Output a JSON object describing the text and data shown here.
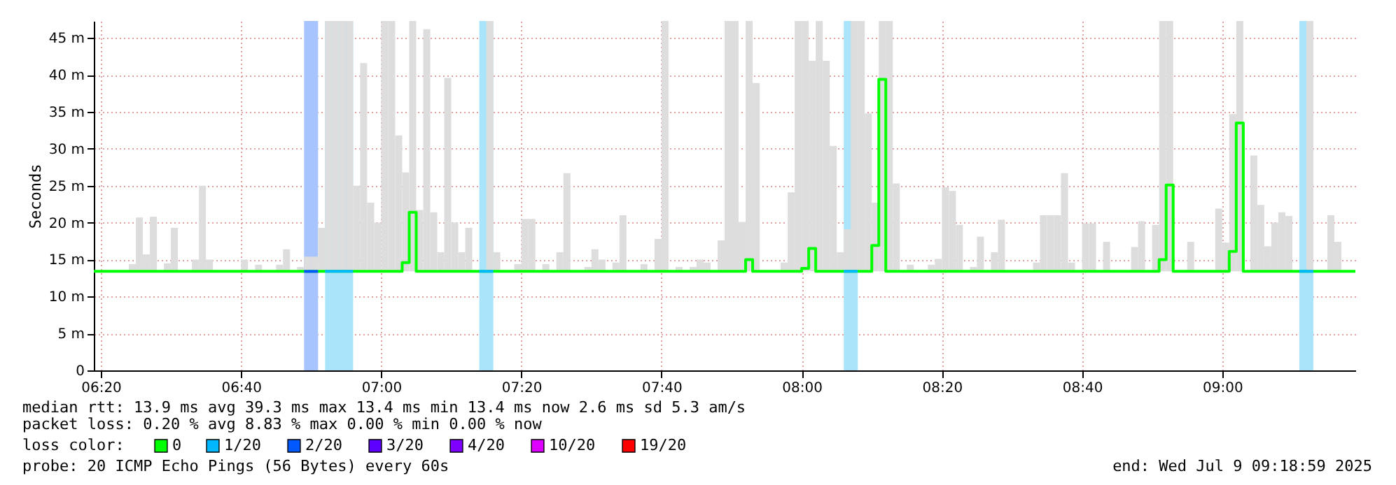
{
  "chart_data": {
    "type": "step",
    "ylabel": "Seconds",
    "xlim": [
      "2025-07-09T06:19",
      "2025-07-09T09:19"
    ],
    "ylim": [
      0,
      47.3
    ],
    "xticks": [
      {
        "value": "2025-07-09T06:20",
        "label": "06:20"
      },
      {
        "value": "2025-07-09T06:40",
        "label": "06:40"
      },
      {
        "value": "2025-07-09T07:00",
        "label": "07:00"
      },
      {
        "value": "2025-07-09T07:20",
        "label": "07:20"
      },
      {
        "value": "2025-07-09T07:40",
        "label": "07:40"
      },
      {
        "value": "2025-07-09T08:00",
        "label": "08:00"
      },
      {
        "value": "2025-07-09T08:20",
        "label": "08:20"
      },
      {
        "value": "2025-07-09T08:40",
        "label": "08:40"
      },
      {
        "value": "2025-07-09T09:00",
        "label": "09:00"
      }
    ],
    "yticks": [
      0,
      {
        "value": 5,
        "label": "5 m"
      },
      {
        "value": 10,
        "label": "10 m"
      },
      {
        "value": 15,
        "label": "15 m"
      },
      {
        "value": 20,
        "label": "20 m"
      },
      {
        "value": 25,
        "label": "25 m"
      },
      {
        "value": 30,
        "label": "30 m"
      },
      {
        "value": 35,
        "label": "35 m"
      },
      {
        "value": 40,
        "label": "40 m"
      },
      {
        "value": 45,
        "label": "45 m"
      }
    ],
    "grid": true,
    "legend": "bottom",
    "legend_title": "loss color:",
    "bands": [
      {
        "axis": "x",
        "from": "2025-07-09T06:49",
        "to": "2025-07-09T06:51",
        "color": "#a8c4ff"
      },
      {
        "axis": "x",
        "from": "2025-07-09T06:52",
        "to": "2025-07-09T06:56",
        "color": "#aae4fa"
      },
      {
        "axis": "x",
        "from": "2025-07-09T07:14",
        "to": "2025-07-09T07:16",
        "color": "#aae4fa"
      },
      {
        "axis": "x",
        "from": "2025-07-09T08:06",
        "to": "2025-07-09T08:08",
        "color": "#aae4fa"
      },
      {
        "axis": "x",
        "from": "2025-07-09T09:11",
        "to": "2025-07-09T09:13",
        "color": "#aae4fa"
      }
    ],
    "series": [
      {
        "type": "bar",
        "color": "#dddddd",
        "x": [
          "2025-07-09T06:24",
          "2025-07-09T06:25",
          "2025-07-09T06:26",
          "2025-07-09T06:27",
          "2025-07-09T06:29",
          "2025-07-09T06:30",
          "2025-07-09T06:33",
          "2025-07-09T06:34",
          "2025-07-09T06:35",
          "2025-07-09T06:40",
          "2025-07-09T06:42",
          "2025-07-09T06:45",
          "2025-07-09T06:46",
          "2025-07-09T06:48",
          "2025-07-09T06:49",
          "2025-07-09T06:50",
          "2025-07-09T06:51",
          "2025-07-09T06:52",
          "2025-07-09T06:53",
          "2025-07-09T06:54",
          "2025-07-09T06:55",
          "2025-07-09T06:56",
          "2025-07-09T06:57",
          "2025-07-09T06:58",
          "2025-07-09T06:59",
          "2025-07-09T07:00",
          "2025-07-09T07:01",
          "2025-07-09T07:02",
          "2025-07-09T07:03",
          "2025-07-09T07:04",
          "2025-07-09T07:05",
          "2025-07-09T07:06",
          "2025-07-09T07:07",
          "2025-07-09T07:08",
          "2025-07-09T07:09",
          "2025-07-09T07:10",
          "2025-07-09T07:11",
          "2025-07-09T07:12",
          "2025-07-09T07:15",
          "2025-07-09T07:16",
          "2025-07-09T07:19",
          "2025-07-09T07:20",
          "2025-07-09T07:21",
          "2025-07-09T07:23",
          "2025-07-09T07:25",
          "2025-07-09T07:26",
          "2025-07-09T07:29",
          "2025-07-09T07:30",
          "2025-07-09T07:31",
          "2025-07-09T07:33",
          "2025-07-09T07:34",
          "2025-07-09T07:37",
          "2025-07-09T07:39",
          "2025-07-09T07:40",
          "2025-07-09T07:42",
          "2025-07-09T07:44",
          "2025-07-09T07:45",
          "2025-07-09T07:46",
          "2025-07-09T07:48",
          "2025-07-09T07:49",
          "2025-07-09T07:50",
          "2025-07-09T07:51",
          "2025-07-09T07:52",
          "2025-07-09T07:53",
          "2025-07-09T07:57",
          "2025-07-09T07:58",
          "2025-07-09T07:59",
          "2025-07-09T08:00",
          "2025-07-09T08:01",
          "2025-07-09T08:02",
          "2025-07-09T08:03",
          "2025-07-09T08:04",
          "2025-07-09T08:05",
          "2025-07-09T08:06",
          "2025-07-09T08:07",
          "2025-07-09T08:08",
          "2025-07-09T08:09",
          "2025-07-09T08:10",
          "2025-07-09T08:11",
          "2025-07-09T08:12",
          "2025-07-09T08:13",
          "2025-07-09T08:15",
          "2025-07-09T08:18",
          "2025-07-09T08:19",
          "2025-07-09T08:20",
          "2025-07-09T08:21",
          "2025-07-09T08:22",
          "2025-07-09T08:24",
          "2025-07-09T08:25",
          "2025-07-09T08:27",
          "2025-07-09T08:28",
          "2025-07-09T08:33",
          "2025-07-09T08:34",
          "2025-07-09T08:35",
          "2025-07-09T08:36",
          "2025-07-09T08:37",
          "2025-07-09T08:38",
          "2025-07-09T08:40",
          "2025-07-09T08:41",
          "2025-07-09T08:43",
          "2025-07-09T08:47",
          "2025-07-09T08:48",
          "2025-07-09T08:50",
          "2025-07-09T08:51",
          "2025-07-09T08:52",
          "2025-07-09T08:55",
          "2025-07-09T08:59",
          "2025-07-09T09:00",
          "2025-07-09T09:01",
          "2025-07-09T09:02",
          "2025-07-09T09:04",
          "2025-07-09T09:05",
          "2025-07-09T09:06",
          "2025-07-09T09:07",
          "2025-07-09T09:08",
          "2025-07-09T09:09",
          "2025-07-09T09:12",
          "2025-07-09T09:15",
          "2025-07-09T09:16"
        ],
        "values": [
          1.0,
          7.3,
          2.3,
          7.4,
          1.1,
          5.9,
          1.6,
          11.6,
          1.6,
          1.6,
          0.9,
          0.9,
          3.0,
          0.6,
          2.0,
          2.0,
          5.9,
          33.9,
          33.9,
          33.9,
          33.9,
          11.6,
          28.2,
          9.3,
          6.6,
          33.9,
          33.9,
          18.4,
          13.4,
          33.9,
          8.3,
          32.8,
          8.0,
          2.6,
          26.2,
          6.6,
          2.6,
          5.9,
          33.9,
          2.6,
          1.0,
          7.1,
          7.1,
          1.0,
          2.6,
          13.3,
          0.6,
          3.0,
          1.6,
          1.2,
          7.6,
          1.0,
          4.4,
          33.9,
          0.6,
          0.6,
          1.6,
          1.2,
          4.2,
          33.9,
          33.9,
          6.7,
          33.9,
          25.5,
          1.2,
          10.7,
          33.9,
          33.9,
          28.5,
          33.9,
          28.5,
          17.0,
          2.6,
          5.7,
          33.9,
          33.9,
          21.4,
          9.3,
          33.9,
          33.9,
          11.9,
          0.9,
          0.9,
          1.7,
          11.4,
          10.9,
          6.3,
          0.6,
          4.7,
          2.6,
          7.0,
          1.2,
          7.6,
          7.6,
          7.6,
          13.3,
          1.2,
          6.5,
          6.5,
          4.0,
          3.3,
          6.8,
          6.3,
          33.9,
          33.9,
          4.0,
          8.5,
          3.9,
          21.3,
          33.9,
          15.7,
          9.0,
          3.4,
          6.6,
          8.0,
          7.5,
          33.9,
          7.6,
          4.0
        ],
        "base": [
          13.4,
          13.4,
          13.4,
          13.4,
          13.4,
          13.4,
          13.4,
          13.4,
          13.4,
          13.4,
          13.4,
          13.4,
          13.4,
          13.4,
          13.4,
          13.4,
          13.4,
          13.4,
          13.4,
          13.4,
          13.4,
          13.4,
          13.4,
          13.4,
          13.4,
          13.4,
          13.4,
          13.4,
          13.4,
          13.4,
          13.4,
          13.4,
          13.4,
          13.4,
          13.4,
          13.4,
          13.4,
          13.4,
          13.4,
          13.4,
          13.4,
          13.4,
          13.4,
          13.4,
          13.4,
          13.4,
          13.4,
          13.4,
          13.4,
          13.4,
          13.4,
          13.4,
          13.4,
          13.4,
          13.4,
          13.4,
          13.4,
          13.4,
          13.4,
          13.4,
          13.4,
          13.4,
          13.4,
          13.4,
          13.4,
          13.4,
          13.4,
          13.4,
          13.4,
          13.4,
          13.4,
          13.4,
          13.4,
          13.4,
          13.4,
          13.4,
          13.4,
          13.4,
          13.4,
          13.4,
          13.4,
          13.4,
          13.4,
          13.4,
          13.4,
          13.4,
          13.4,
          13.4,
          13.4,
          13.4,
          13.4,
          13.4,
          13.4,
          13.4,
          13.4,
          13.4,
          13.4,
          13.4,
          13.4,
          13.4,
          13.4,
          13.4,
          13.4,
          13.4,
          13.4,
          13.4,
          13.4,
          13.4,
          13.4,
          13.4,
          13.4,
          13.4,
          13.4,
          13.4,
          13.4,
          13.4,
          13.4,
          13.4,
          13.4
        ]
      },
      {
        "name": "0",
        "color": "#00ff00",
        "x": [
          "2025-07-09T06:19",
          "2025-07-09T07:03",
          "2025-07-09T07:04",
          "2025-07-09T07:05",
          "2025-07-09T07:52",
          "2025-07-09T07:53",
          "2025-07-09T08:00",
          "2025-07-09T08:01",
          "2025-07-09T08:02",
          "2025-07-09T08:10",
          "2025-07-09T08:11",
          "2025-07-09T08:12",
          "2025-07-09T08:51",
          "2025-07-09T08:52",
          "2025-07-09T08:53",
          "2025-07-09T09:01",
          "2025-07-09T09:02",
          "2025-07-09T09:03",
          "2025-07-09T09:19"
        ],
        "values": [
          13.4,
          14.6,
          21.4,
          13.4,
          15.0,
          13.4,
          13.8,
          16.5,
          13.4,
          16.9,
          39.4,
          13.4,
          15.0,
          25.1,
          13.4,
          16.1,
          33.5,
          13.4,
          13.4
        ]
      },
      {
        "name": "1/20",
        "color": "#00b8ff",
        "x": [
          "2025-07-09T06:52",
          "2025-07-09T06:56",
          "2025-07-09T06:57",
          "2025-07-09T07:14",
          "2025-07-09T07:16",
          "2025-07-09T07:17",
          "2025-07-09T08:06",
          "2025-07-09T08:08",
          "2025-07-09T08:09",
          "2025-07-09T09:11",
          "2025-07-09T09:13"
        ],
        "values": [
          13.4,
          13.4,
          null,
          13.4,
          13.4,
          null,
          13.4,
          13.4,
          null,
          13.4,
          13.4
        ]
      },
      {
        "name": "2/20",
        "color": "#0059ff",
        "x": [
          "2025-07-09T06:49",
          "2025-07-09T06:51"
        ],
        "values": [
          13.4,
          13.4
        ]
      },
      {
        "name": "3/20",
        "color": "#5e00ff"
      },
      {
        "name": "4/20",
        "color": "#7e00ff"
      },
      {
        "name": "10/20",
        "color": "#dd00ff"
      },
      {
        "name": "19/20",
        "color": "#ff0000"
      }
    ],
    "annotations": [
      "median rtt:  13.9 ms avg  39.3 ms max  13.4 ms min  13.4 ms now  2.6 ms sd  5.3   am/s",
      "packet loss: 0.20 % avg  8.83 % max  0.00 % min  0.00 % now",
      "probe:       20 ICMP Echo Pings (56 Bytes) every 60s",
      "end: Wed Jul  9 09:18:59 2025"
    ]
  }
}
